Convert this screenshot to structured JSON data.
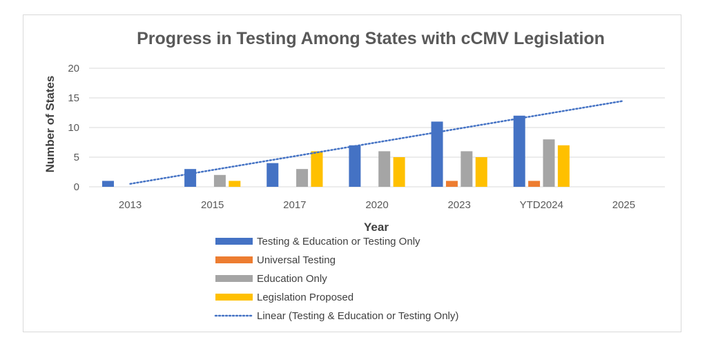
{
  "chart_data": {
    "type": "bar",
    "title": "Progress in Testing Among States with cCMV Legislation",
    "xlabel": "Year",
    "ylabel": "Number of States",
    "categories": [
      "2013",
      "2015",
      "2017",
      "2020",
      "2023",
      "YTD2024",
      "2025"
    ],
    "ylim": [
      0,
      20
    ],
    "yticks": [
      0,
      5,
      10,
      15,
      20
    ],
    "grid": true,
    "legend_position": "bottom",
    "series": [
      {
        "name": "Testing & Education or Testing Only",
        "color": "#4472C4",
        "values": [
          1,
          3,
          4,
          7,
          11,
          12,
          null
        ]
      },
      {
        "name": "Universal Testing",
        "color": "#ED7D31",
        "values": [
          null,
          null,
          null,
          null,
          1,
          1,
          null
        ]
      },
      {
        "name": "Education Only",
        "color": "#A5A5A5",
        "values": [
          null,
          2,
          3,
          6,
          6,
          8,
          null
        ]
      },
      {
        "name": "Legislation Proposed",
        "color": "#FFC000",
        "values": [
          null,
          1,
          6,
          5,
          5,
          7,
          null
        ]
      }
    ],
    "trendline": {
      "name": "Linear (Testing & Education or Testing Only)",
      "color": "#4472C4",
      "style": "dotted",
      "start": {
        "x": "2013",
        "y": 0.5
      },
      "end": {
        "x": "2025",
        "y": 14.5
      }
    }
  }
}
